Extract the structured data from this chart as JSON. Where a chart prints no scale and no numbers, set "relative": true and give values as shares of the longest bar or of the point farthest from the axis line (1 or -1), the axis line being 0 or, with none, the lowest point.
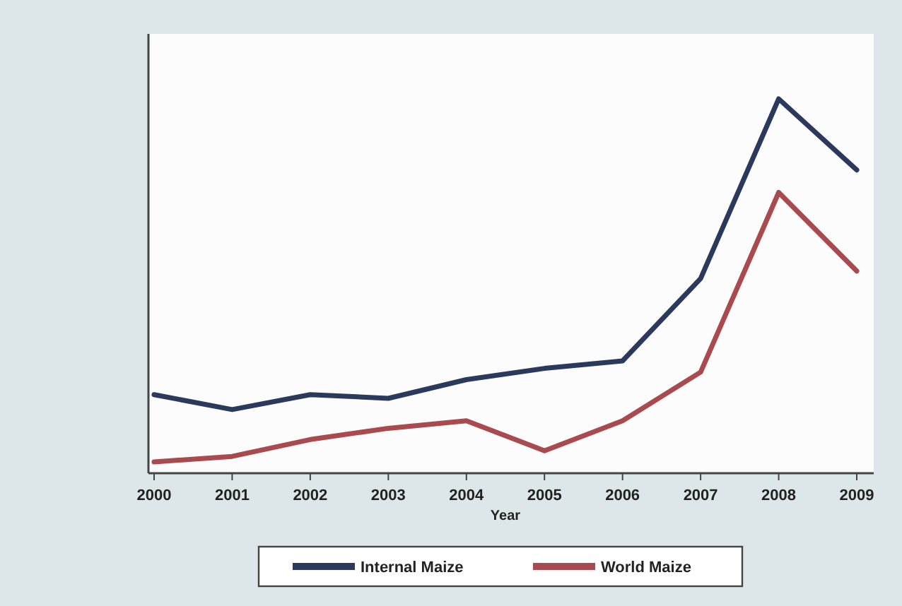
{
  "chart_data": {
    "type": "line",
    "xlabel": "Year",
    "relative": true,
    "categories": [
      "2000",
      "2001",
      "2002",
      "2003",
      "2004",
      "2005",
      "2006",
      "2007",
      "2008",
      "2009"
    ],
    "series": [
      {
        "name": "Internal Maize",
        "color": "#2b3a5c",
        "values": [
          0.21,
          0.17,
          0.21,
          0.2,
          0.25,
          0.28,
          0.3,
          0.52,
          1,
          0.81
        ]
      },
      {
        "name": "World Maize",
        "color": "#a94a4f",
        "values": [
          0.03,
          0.045,
          0.09,
          0.12,
          0.14,
          0.06,
          0.14,
          0.27,
          0.75,
          0.54
        ]
      }
    ],
    "legend": "bottom",
    "marker": "none",
    "line_style": "solid"
  }
}
